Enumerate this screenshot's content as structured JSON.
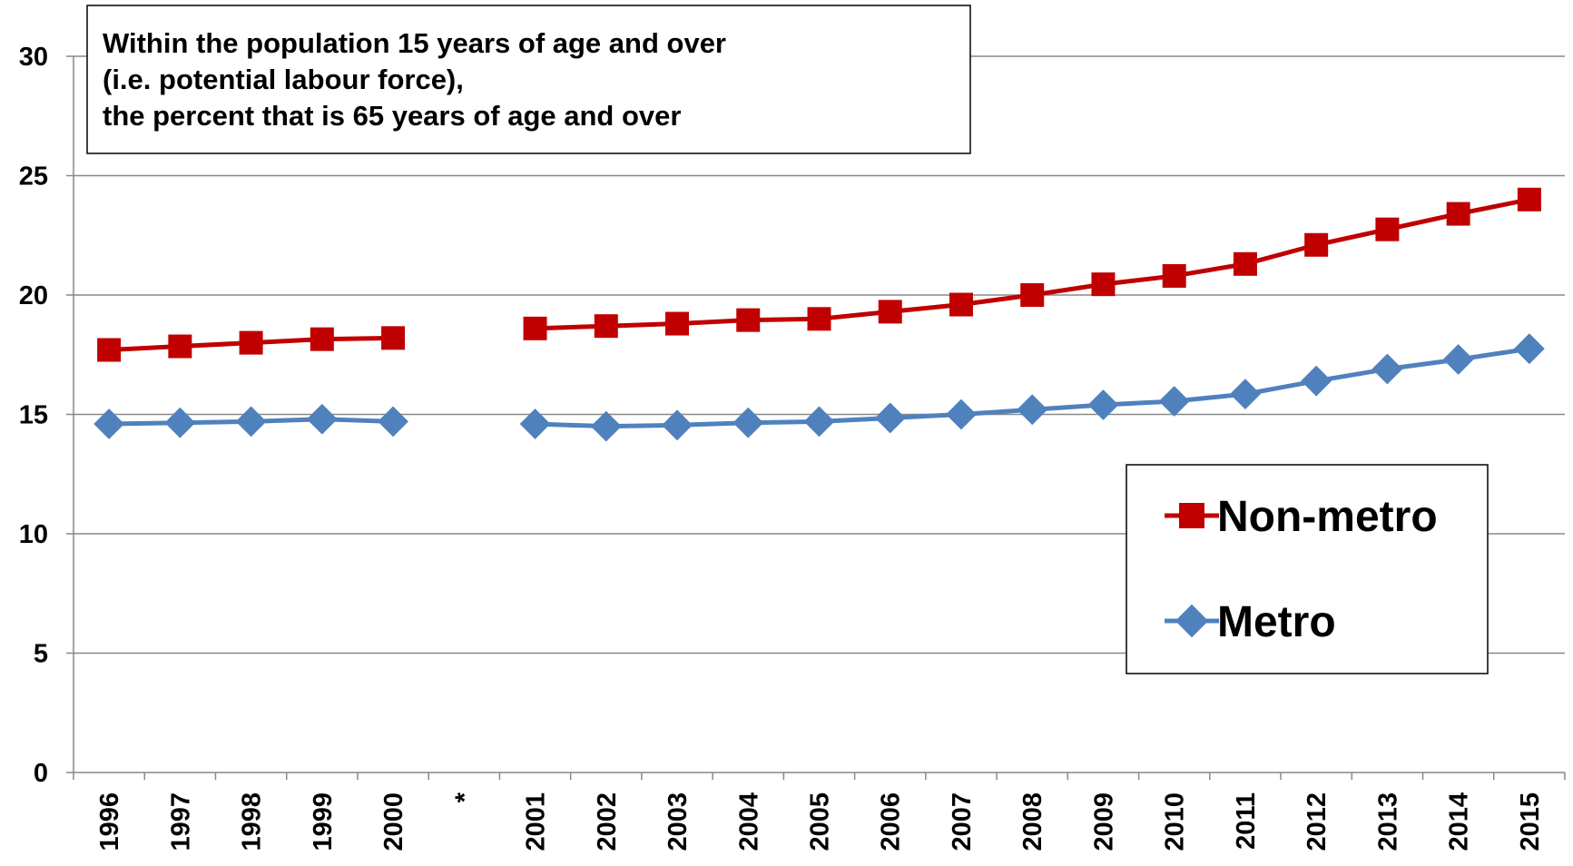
{
  "chart_data": {
    "type": "line",
    "title_lines": [
      "Within the population 15 years of age and over",
      "(i.e. potential labour force),",
      "the percent that is 65 years of age and over"
    ],
    "categories": [
      "1996",
      "1997",
      "1998",
      "1999",
      "2000",
      "*",
      "2001",
      "2002",
      "2003",
      "2004",
      "2005",
      "2006",
      "2007",
      "2008",
      "2009",
      "2010",
      "2011",
      "2012",
      "2013",
      "2014",
      "2015"
    ],
    "series": [
      {
        "name": "Non-metro",
        "color": "#c00000",
        "marker": "square",
        "values": [
          17.7,
          17.85,
          18.0,
          18.15,
          18.2,
          null,
          18.6,
          18.7,
          18.8,
          18.95,
          19.0,
          19.3,
          19.6,
          20.0,
          20.45,
          20.8,
          21.3,
          22.1,
          22.75,
          23.4,
          24.0
        ]
      },
      {
        "name": "Metro",
        "color": "#4f81bd",
        "marker": "diamond",
        "values": [
          14.6,
          14.65,
          14.7,
          14.8,
          14.7,
          null,
          14.6,
          14.5,
          14.55,
          14.65,
          14.7,
          14.85,
          15.0,
          15.2,
          15.4,
          15.55,
          15.85,
          16.4,
          16.9,
          17.3,
          17.75
        ]
      }
    ],
    "ylim": [
      0,
      30
    ],
    "yticks": [
      0,
      5,
      10,
      15,
      20,
      25,
      30
    ],
    "grid": true
  }
}
